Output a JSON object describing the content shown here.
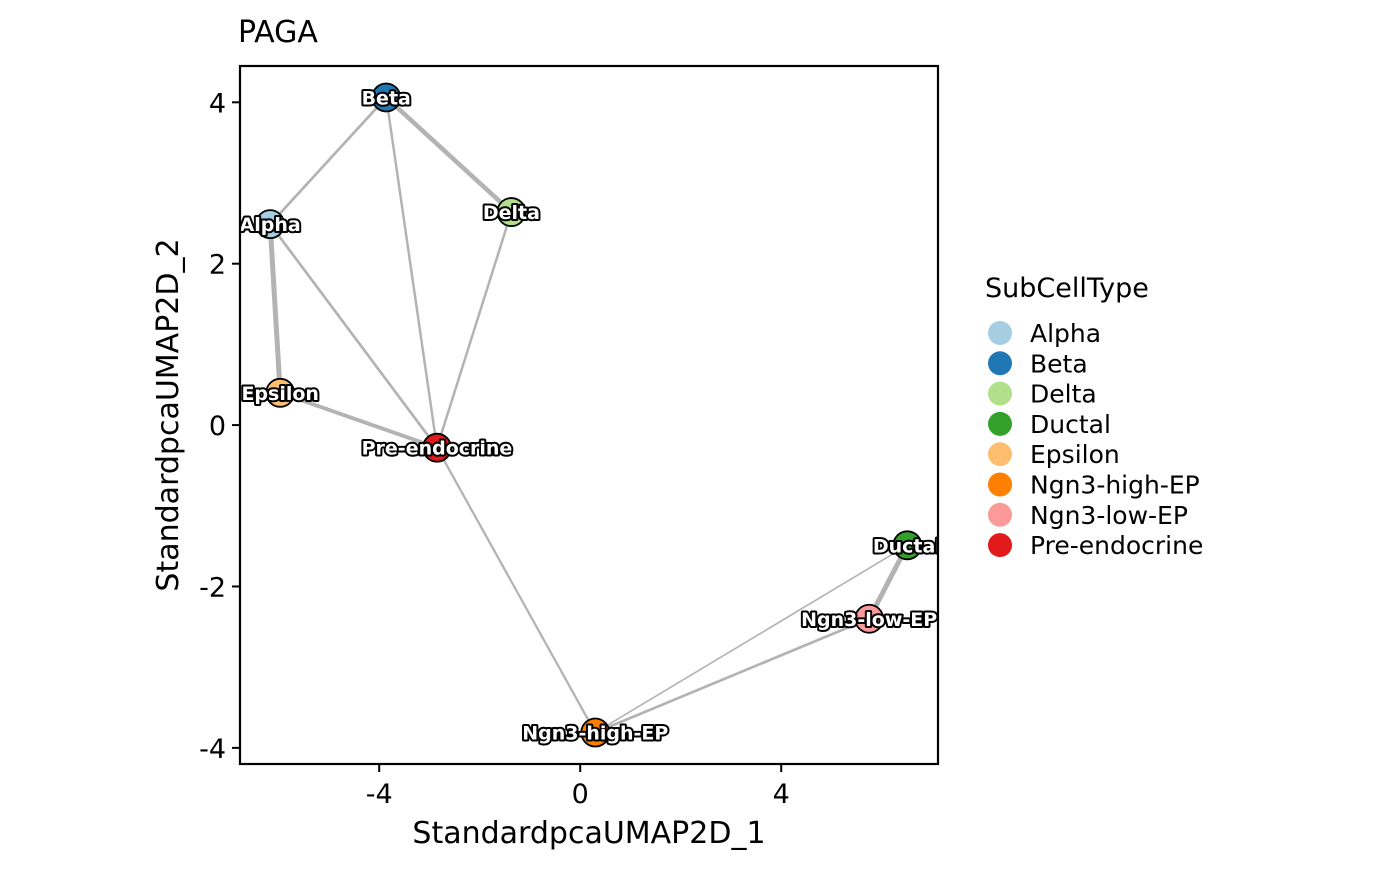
{
  "chart_data": {
    "type": "scatter",
    "title": "PAGA",
    "xlabel": "StandardpcaUMAP2D_1",
    "ylabel": "StandardpcaUMAP2D_2",
    "xlim": [
      -6.77,
      7.12
    ],
    "ylim": [
      -4.2,
      4.45
    ],
    "xticks": [
      -4,
      0,
      4
    ],
    "yticks": [
      -4,
      -2,
      0,
      2,
      4
    ],
    "xtick_labels": [
      "-4",
      "0",
      "4"
    ],
    "ytick_labels": [
      "-4",
      "-2",
      "0",
      "2",
      "4"
    ],
    "grid": false,
    "legend_title": "SubCellType",
    "legend_placement": "right",
    "nodes": [
      {
        "name": "Alpha",
        "x": -6.17,
        "y": 2.49,
        "color": "#A6CEE3"
      },
      {
        "name": "Beta",
        "x": -3.86,
        "y": 4.06,
        "color": "#1F78B4"
      },
      {
        "name": "Delta",
        "x": -1.37,
        "y": 2.64,
        "color": "#B2DF8A"
      },
      {
        "name": "Ductal",
        "x": 6.51,
        "y": -1.49,
        "color": "#33A02C"
      },
      {
        "name": "Epsilon",
        "x": -5.97,
        "y": 0.4,
        "color": "#FDBF6F"
      },
      {
        "name": "Ngn3-high-EP",
        "x": 0.3,
        "y": -3.81,
        "color": "#FF7F00"
      },
      {
        "name": "Ngn3-low-EP",
        "x": 5.75,
        "y": -2.4,
        "color": "#FB9A99"
      },
      {
        "name": "Pre-endocrine",
        "x": -2.85,
        "y": -0.28,
        "color": "#E31A1C"
      }
    ],
    "edges": [
      {
        "from": "Beta",
        "to": "Delta",
        "weight": 0.9
      },
      {
        "from": "Beta",
        "to": "Alpha",
        "weight": 0.45
      },
      {
        "from": "Beta",
        "to": "Pre-endocrine",
        "weight": 0.4
      },
      {
        "from": "Alpha",
        "to": "Epsilon",
        "weight": 1.0
      },
      {
        "from": "Alpha",
        "to": "Pre-endocrine",
        "weight": 0.45
      },
      {
        "from": "Epsilon",
        "to": "Pre-endocrine",
        "weight": 0.75
      },
      {
        "from": "Delta",
        "to": "Pre-endocrine",
        "weight": 0.4
      },
      {
        "from": "Pre-endocrine",
        "to": "Ngn3-high-EP",
        "weight": 0.35
      },
      {
        "from": "Ngn3-high-EP",
        "to": "Ductal",
        "weight": 0.2
      },
      {
        "from": "Ngn3-high-EP",
        "to": "Ngn3-low-EP",
        "weight": 0.45
      },
      {
        "from": "Ngn3-low-EP",
        "to": "Ductal",
        "weight": 1.0
      }
    ]
  }
}
